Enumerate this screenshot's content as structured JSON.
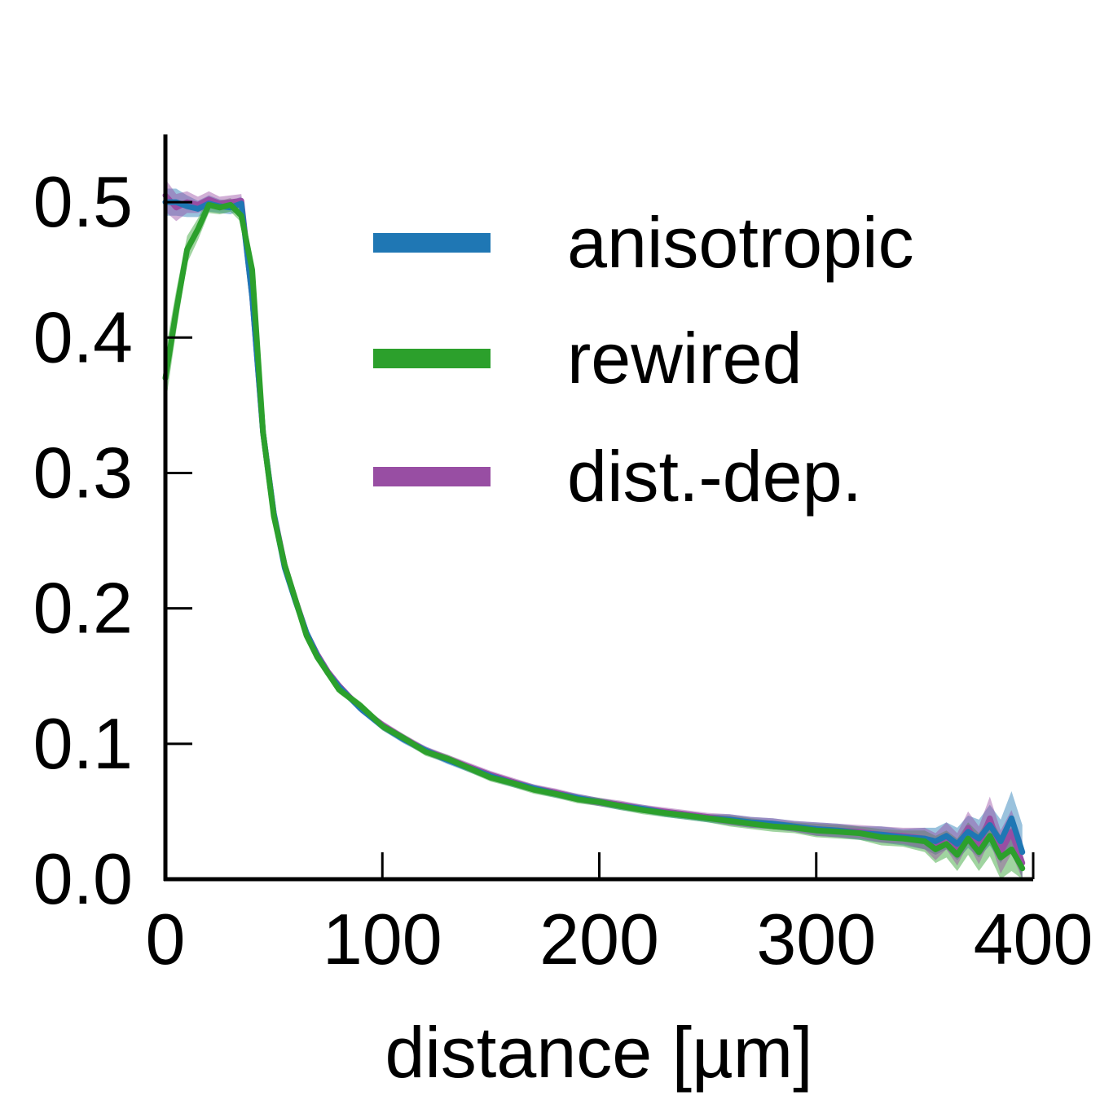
{
  "chart_data": {
    "type": "line",
    "title": "",
    "xlabel": "distance [µm]",
    "ylabel": "",
    "xlim": [
      0,
      400
    ],
    "ylim": [
      0,
      0.55
    ],
    "xticks": [
      "0",
      "100",
      "200",
      "300",
      "400"
    ],
    "yticks": [
      "0.0",
      "0.1",
      "0.2",
      "0.3",
      "0.4",
      "0.5"
    ],
    "grid": false,
    "legend_position": "top-right",
    "x": [
      0,
      5,
      10,
      15,
      20,
      25,
      30,
      35,
      40,
      45,
      50,
      55,
      60,
      65,
      70,
      75,
      80,
      90,
      100,
      110,
      120,
      130,
      140,
      150,
      160,
      170,
      180,
      190,
      200,
      210,
      220,
      230,
      240,
      250,
      260,
      270,
      280,
      290,
      300,
      310,
      320,
      330,
      340,
      350,
      355,
      360,
      365,
      370,
      375,
      380,
      385,
      390,
      395
    ],
    "series": [
      {
        "name": "anisotropic",
        "color": "#1f77b4",
        "values": [
          0.5,
          0.5,
          0.497,
          0.495,
          0.499,
          0.497,
          0.496,
          0.499,
          0.43,
          0.33,
          0.27,
          0.23,
          0.205,
          0.182,
          0.165,
          0.152,
          0.142,
          0.126,
          0.113,
          0.103,
          0.095,
          0.088,
          0.082,
          0.076,
          0.071,
          0.067,
          0.063,
          0.06,
          0.057,
          0.054,
          0.052,
          0.049,
          0.047,
          0.045,
          0.044,
          0.042,
          0.041,
          0.039,
          0.037,
          0.036,
          0.034,
          0.033,
          0.031,
          0.03,
          0.028,
          0.032,
          0.026,
          0.035,
          0.03,
          0.04,
          0.028,
          0.045,
          0.02
        ],
        "band": [
          0.01,
          0.01,
          0.008,
          0.006,
          0.006,
          0.005,
          0.005,
          0.005,
          0.004,
          0.004,
          0.003,
          0.003,
          0.003,
          0.003,
          0.003,
          0.003,
          0.003,
          0.003,
          0.003,
          0.003,
          0.003,
          0.003,
          0.003,
          0.003,
          0.003,
          0.003,
          0.003,
          0.003,
          0.003,
          0.003,
          0.003,
          0.003,
          0.003,
          0.003,
          0.004,
          0.004,
          0.004,
          0.004,
          0.005,
          0.005,
          0.005,
          0.006,
          0.006,
          0.008,
          0.01,
          0.01,
          0.012,
          0.012,
          0.014,
          0.015,
          0.016,
          0.02,
          0.02
        ]
      },
      {
        "name": "rewired",
        "color": "#2ca02c",
        "values": [
          0.37,
          0.42,
          0.465,
          0.48,
          0.498,
          0.496,
          0.498,
          0.49,
          0.45,
          0.33,
          0.268,
          0.232,
          0.206,
          0.18,
          0.164,
          0.152,
          0.14,
          0.128,
          0.113,
          0.104,
          0.094,
          0.089,
          0.082,
          0.075,
          0.071,
          0.066,
          0.063,
          0.059,
          0.057,
          0.054,
          0.051,
          0.049,
          0.047,
          0.045,
          0.043,
          0.041,
          0.039,
          0.038,
          0.036,
          0.035,
          0.034,
          0.031,
          0.03,
          0.028,
          0.022,
          0.026,
          0.018,
          0.03,
          0.02,
          0.032,
          0.016,
          0.022,
          0.008
        ],
        "band": [
          0.02,
          0.015,
          0.01,
          0.008,
          0.006,
          0.005,
          0.005,
          0.005,
          0.004,
          0.004,
          0.003,
          0.003,
          0.003,
          0.003,
          0.003,
          0.003,
          0.003,
          0.003,
          0.003,
          0.003,
          0.003,
          0.003,
          0.003,
          0.003,
          0.003,
          0.003,
          0.003,
          0.003,
          0.003,
          0.003,
          0.003,
          0.003,
          0.003,
          0.003,
          0.004,
          0.004,
          0.004,
          0.004,
          0.005,
          0.005,
          0.005,
          0.006,
          0.006,
          0.008,
          0.01,
          0.01,
          0.012,
          0.012,
          0.014,
          0.015,
          0.016,
          0.016,
          0.016
        ]
      },
      {
        "name": "dist.-dep.",
        "color": "#984ea3",
        "values": [
          0.505,
          0.496,
          0.5,
          0.498,
          0.502,
          0.499,
          0.5,
          0.501,
          0.43,
          0.33,
          0.27,
          0.232,
          0.206,
          0.182,
          0.166,
          0.153,
          0.143,
          0.126,
          0.114,
          0.104,
          0.095,
          0.089,
          0.083,
          0.077,
          0.072,
          0.067,
          0.064,
          0.06,
          0.057,
          0.055,
          0.052,
          0.05,
          0.048,
          0.046,
          0.044,
          0.042,
          0.041,
          0.039,
          0.037,
          0.036,
          0.035,
          0.033,
          0.032,
          0.03,
          0.024,
          0.032,
          0.022,
          0.038,
          0.025,
          0.045,
          0.02,
          0.035,
          0.012
        ],
        "band": [
          0.012,
          0.01,
          0.008,
          0.006,
          0.006,
          0.005,
          0.005,
          0.005,
          0.004,
          0.004,
          0.003,
          0.003,
          0.003,
          0.003,
          0.003,
          0.003,
          0.003,
          0.003,
          0.003,
          0.003,
          0.003,
          0.003,
          0.003,
          0.003,
          0.003,
          0.003,
          0.003,
          0.003,
          0.003,
          0.003,
          0.003,
          0.003,
          0.003,
          0.003,
          0.004,
          0.004,
          0.004,
          0.004,
          0.005,
          0.005,
          0.005,
          0.006,
          0.006,
          0.008,
          0.01,
          0.01,
          0.012,
          0.012,
          0.014,
          0.016,
          0.016,
          0.016,
          0.016
        ]
      }
    ]
  }
}
